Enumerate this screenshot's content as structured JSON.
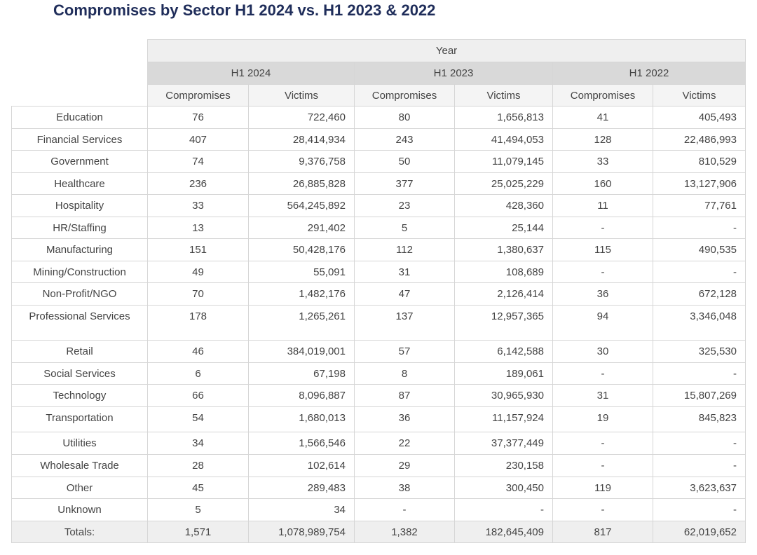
{
  "title": "Compromises by Sector H1 2024 vs. H1 2023 & 2022",
  "table": {
    "header": {
      "year": "Year",
      "groups": [
        "H1 2024",
        "H1 2023",
        "H1 2022"
      ],
      "columns": [
        "Compromises",
        "Victims",
        "Compromises",
        "Victims",
        "Compromises",
        "Victims"
      ]
    },
    "rows": [
      [
        "Education",
        "76",
        "722,460",
        "80",
        "1,656,813",
        "41",
        "405,493"
      ],
      [
        "Financial Services",
        "407",
        "28,414,934",
        "243",
        "41,494,053",
        "128",
        "22,486,993"
      ],
      [
        "Government",
        "74",
        "9,376,758",
        "50",
        "11,079,145",
        "33",
        "810,529"
      ],
      [
        "Healthcare",
        "236",
        "26,885,828",
        "377",
        "25,025,229",
        "160",
        "13,127,906"
      ],
      [
        "Hospitality",
        "33",
        "564,245,892",
        "23",
        "428,360",
        "11",
        "77,761"
      ],
      [
        "HR/Staffing",
        "13",
        "291,402",
        "5",
        "25,144",
        "-",
        "-"
      ],
      [
        "Manufacturing",
        "151",
        "50,428,176",
        "112",
        "1,380,637",
        "115",
        "490,535"
      ],
      [
        "Mining/Construction",
        "49",
        "55,091",
        "31",
        "108,689",
        "-",
        "-"
      ],
      [
        "Non-Profit/NGO",
        "70",
        "1,482,176",
        "47",
        "2,126,414",
        "36",
        "672,128"
      ],
      [
        "Professional Services",
        "178",
        "1,265,261",
        "137",
        "12,957,365",
        "94",
        "3,346,048"
      ],
      [
        "Retail",
        "46",
        "384,019,001",
        "57",
        "6,142,588",
        "30",
        "325,530"
      ],
      [
        "Social Services",
        "6",
        "67,198",
        "8",
        "189,061",
        "-",
        "-"
      ],
      [
        "Technology",
        "66",
        "8,096,887",
        "87",
        "30,965,930",
        "31",
        "15,807,269"
      ],
      [
        "Transportation",
        "54",
        "1,680,013",
        "36",
        "11,157,924",
        "19",
        "845,823"
      ],
      [
        "Utilities",
        "34",
        "1,566,546",
        "22",
        "37,377,449",
        "-",
        "-"
      ],
      [
        "Wholesale Trade",
        "28",
        "102,614",
        "29",
        "230,158",
        "-",
        "-"
      ],
      [
        "Other",
        "45",
        "289,483",
        "38",
        "300,450",
        "119",
        "3,623,637"
      ],
      [
        "Unknown",
        "5",
        "34",
        "-",
        "-",
        "-",
        "-"
      ]
    ],
    "totals": [
      "Totals:",
      "1,571",
      "1,078,989,754",
      "1,382",
      "182,645,409",
      "817",
      "62,019,652"
    ]
  }
}
